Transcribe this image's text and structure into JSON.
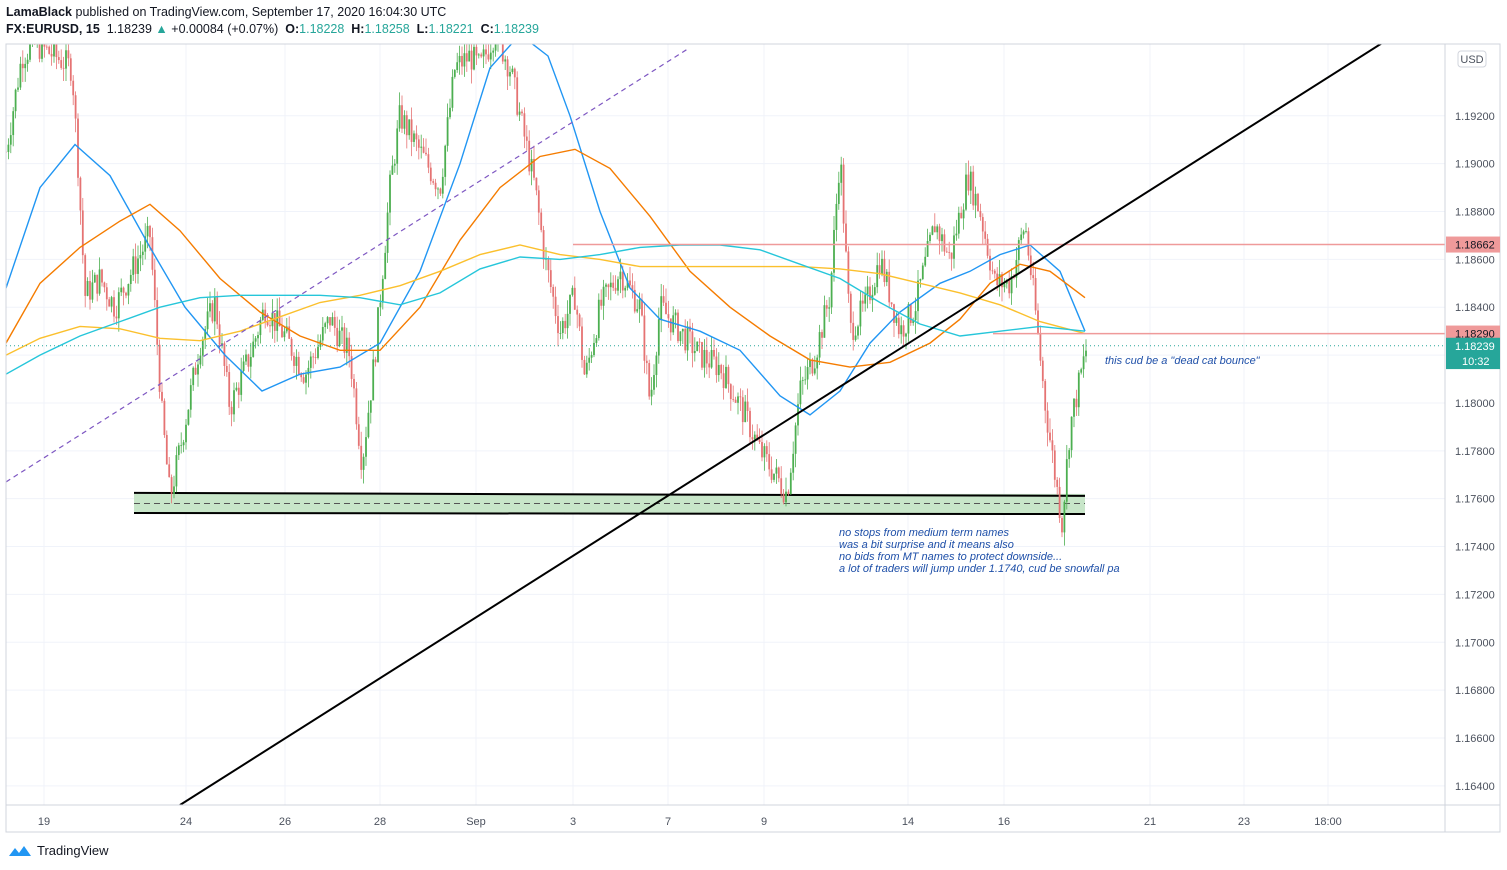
{
  "header": {
    "author": "LamaBlack",
    "published": "published on TradingView.com, September 17, 2020 16:04:30 UTC",
    "symbol": "FX:EURUSD, 15",
    "last": "1.18239",
    "change_arrow": "▲",
    "change": "+0.00084 (+0.07%)",
    "o_label": "O:",
    "o": "1.18228",
    "h_label": "H:",
    "h": "1.18258",
    "l_label": "L:",
    "l": "1.18221",
    "c_label": "C:",
    "c": "1.18239"
  },
  "currency_label": "USD",
  "footer": {
    "brand": "TradingView"
  },
  "colors": {
    "up": "#26a69a",
    "down": "#ef5350",
    "candle_up": "#4caf50",
    "candle_down": "#e57373",
    "ma_blue": "#2196f3",
    "ma_orange": "#f57c00",
    "ma_yellow": "#fbc02d",
    "ma_cyan": "#26c6da",
    "hline": "#ef9a9a",
    "zone": "#c8e6c9",
    "annotation": "#1e4fa8"
  },
  "chart_data": {
    "type": "candlestick",
    "y_axis": {
      "range": [
        1.1632,
        1.195
      ],
      "ticks": [
        "1.19200",
        "1.19000",
        "1.18800",
        "1.18600",
        "1.18400",
        "1.18200",
        "1.18000",
        "1.17800",
        "1.17600",
        "1.17400",
        "1.17200",
        "1.17000",
        "1.16800",
        "1.16600",
        "1.16400"
      ]
    },
    "x_axis": {
      "ticks": [
        "19",
        "24",
        "26",
        "28",
        "Sep",
        "3",
        "7",
        "9",
        "14",
        "16",
        "21",
        "23",
        "18:00"
      ]
    },
    "price_badges": [
      {
        "label": "1.18662",
        "value": 1.18662,
        "kind": "hline"
      },
      {
        "label": "1.18290",
        "value": 1.1829,
        "kind": "hline"
      },
      {
        "label": "1.18239",
        "value": 1.18239,
        "kind": "last"
      },
      {
        "label": "10:32",
        "value": 1.18175,
        "kind": "countdown"
      }
    ],
    "horizontal_lines": [
      {
        "value": 1.18662,
        "from": "Sep 3",
        "to": "axis"
      },
      {
        "value": 1.1829,
        "from": "Sep 15",
        "to": "axis"
      }
    ],
    "support_zone": {
      "top": 1.1762,
      "bottom": 1.1754,
      "mid": 1.1758
    },
    "annotations": [
      {
        "text": "this cud be a \"dead cat bounce\"",
        "value": 1.1818
      },
      {
        "text": "no stops from medium term names",
        "value": 1.1746
      },
      {
        "text": "was a bit surprise and it means also",
        "value": 1.1741
      },
      {
        "text": "no bids from MT names to protect downside...",
        "value": 1.1736
      },
      {
        "text": "a lot of traders will jump under 1.1740, cud be snowfall pa",
        "value": 1.1731
      }
    ],
    "price_path": [
      [
        0,
        1.189
      ],
      [
        10,
        1.1915
      ],
      [
        22,
        1.1945
      ],
      [
        35,
        1.195
      ],
      [
        55,
        1.1945
      ],
      [
        72,
        1.194
      ],
      [
        78,
        1.19
      ],
      [
        85,
        1.1845
      ],
      [
        100,
        1.1852
      ],
      [
        115,
        1.184
      ],
      [
        135,
        1.1858
      ],
      [
        150,
        1.187
      ],
      [
        162,
        1.1795
      ],
      [
        170,
        1.176
      ],
      [
        182,
        1.1785
      ],
      [
        200,
        1.1825
      ],
      [
        215,
        1.1842
      ],
      [
        230,
        1.1798
      ],
      [
        250,
        1.182
      ],
      [
        265,
        1.184
      ],
      [
        285,
        1.1828
      ],
      [
        305,
        1.1812
      ],
      [
        330,
        1.1835
      ],
      [
        350,
        1.182
      ],
      [
        362,
        1.1775
      ],
      [
        375,
        1.182
      ],
      [
        390,
        1.189
      ],
      [
        400,
        1.192
      ],
      [
        420,
        1.1905
      ],
      [
        440,
        1.189
      ],
      [
        455,
        1.194
      ],
      [
        470,
        1.1945
      ],
      [
        480,
        1.194
      ],
      [
        495,
        1.1955
      ],
      [
        510,
        1.194
      ],
      [
        520,
        1.192
      ],
      [
        535,
        1.189
      ],
      [
        545,
        1.186
      ],
      [
        560,
        1.183
      ],
      [
        575,
        1.1845
      ],
      [
        585,
        1.181
      ],
      [
        600,
        1.184
      ],
      [
        620,
        1.1855
      ],
      [
        640,
        1.184
      ],
      [
        650,
        1.18
      ],
      [
        660,
        1.184
      ],
      [
        680,
        1.183
      ],
      [
        700,
        1.182
      ],
      [
        720,
        1.1815
      ],
      [
        745,
        1.1795
      ],
      [
        760,
        1.178
      ],
      [
        775,
        1.177
      ],
      [
        787,
        1.1762
      ],
      [
        800,
        1.1805
      ],
      [
        815,
        1.182
      ],
      [
        830,
        1.1845
      ],
      [
        840,
        1.1905
      ],
      [
        850,
        1.183
      ],
      [
        865,
        1.184
      ],
      [
        880,
        1.186
      ],
      [
        900,
        1.183
      ],
      [
        915,
        1.184
      ],
      [
        935,
        1.1875
      ],
      [
        950,
        1.186
      ],
      [
        968,
        1.1895
      ],
      [
        980,
        1.188
      ],
      [
        995,
        1.185
      ],
      [
        1010,
        1.185
      ],
      [
        1025,
        1.1875
      ],
      [
        1035,
        1.184
      ],
      [
        1045,
        1.18
      ],
      [
        1055,
        1.177
      ],
      [
        1062,
        1.175
      ],
      [
        1070,
        1.179
      ],
      [
        1080,
        1.181
      ],
      [
        1087,
        1.1824
      ]
    ],
    "moving_averages": [
      {
        "color": "#2196f3",
        "points": [
          [
            6,
            1.1848
          ],
          [
            40,
            1.189
          ],
          [
            75,
            1.1908
          ],
          [
            110,
            1.1895
          ],
          [
            150,
            1.1865
          ],
          [
            185,
            1.184
          ],
          [
            225,
            1.182
          ],
          [
            262,
            1.1805
          ],
          [
            300,
            1.1812
          ],
          [
            340,
            1.1815
          ],
          [
            380,
            1.1825
          ],
          [
            420,
            1.1855
          ],
          [
            460,
            1.19
          ],
          [
            490,
            1.194
          ],
          [
            520,
            1.1954
          ],
          [
            548,
            1.1945
          ],
          [
            570,
            1.192
          ],
          [
            600,
            1.188
          ],
          [
            630,
            1.1848
          ],
          [
            660,
            1.1835
          ],
          [
            700,
            1.183
          ],
          [
            740,
            1.1822
          ],
          [
            780,
            1.1803
          ],
          [
            810,
            1.1795
          ],
          [
            840,
            1.1805
          ],
          [
            870,
            1.1825
          ],
          [
            900,
            1.1838
          ],
          [
            940,
            1.185
          ],
          [
            970,
            1.1855
          ],
          [
            1000,
            1.1862
          ],
          [
            1030,
            1.1866
          ],
          [
            1060,
            1.1855
          ],
          [
            1085,
            1.183
          ]
        ]
      },
      {
        "color": "#f57c00",
        "points": [
          [
            6,
            1.1825
          ],
          [
            40,
            1.185
          ],
          [
            80,
            1.1865
          ],
          [
            120,
            1.1876
          ],
          [
            150,
            1.1883
          ],
          [
            180,
            1.1872
          ],
          [
            220,
            1.1852
          ],
          [
            260,
            1.1838
          ],
          [
            300,
            1.1828
          ],
          [
            340,
            1.1822
          ],
          [
            380,
            1.1822
          ],
          [
            420,
            1.184
          ],
          [
            460,
            1.1868
          ],
          [
            500,
            1.189
          ],
          [
            540,
            1.1903
          ],
          [
            575,
            1.1906
          ],
          [
            610,
            1.1898
          ],
          [
            650,
            1.1878
          ],
          [
            690,
            1.1855
          ],
          [
            730,
            1.184
          ],
          [
            770,
            1.1828
          ],
          [
            810,
            1.1818
          ],
          [
            850,
            1.1815
          ],
          [
            890,
            1.1817
          ],
          [
            930,
            1.1825
          ],
          [
            960,
            1.1835
          ],
          [
            990,
            1.185
          ],
          [
            1020,
            1.1858
          ],
          [
            1050,
            1.1855
          ],
          [
            1085,
            1.1844
          ]
        ]
      },
      {
        "color": "#fbc02d",
        "points": [
          [
            6,
            1.182
          ],
          [
            40,
            1.1827
          ],
          [
            80,
            1.1832
          ],
          [
            120,
            1.1831
          ],
          [
            160,
            1.1827
          ],
          [
            200,
            1.1826
          ],
          [
            240,
            1.183
          ],
          [
            280,
            1.1836
          ],
          [
            320,
            1.1842
          ],
          [
            360,
            1.1845
          ],
          [
            400,
            1.1849
          ],
          [
            440,
            1.1855
          ],
          [
            480,
            1.1862
          ],
          [
            520,
            1.1866
          ],
          [
            560,
            1.1862
          ],
          [
            600,
            1.186
          ],
          [
            640,
            1.1857
          ],
          [
            680,
            1.1857
          ],
          [
            720,
            1.1857
          ],
          [
            760,
            1.1857
          ],
          [
            800,
            1.1857
          ],
          [
            840,
            1.1856
          ],
          [
            880,
            1.1854
          ],
          [
            920,
            1.185
          ],
          [
            960,
            1.1846
          ],
          [
            1000,
            1.1841
          ],
          [
            1040,
            1.1834
          ],
          [
            1085,
            1.1829
          ]
        ]
      },
      {
        "color": "#26c6da",
        "points": [
          [
            6,
            1.1812
          ],
          [
            40,
            1.182
          ],
          [
            80,
            1.1828
          ],
          [
            120,
            1.1834
          ],
          [
            160,
            1.184
          ],
          [
            200,
            1.1844
          ],
          [
            240,
            1.1845
          ],
          [
            280,
            1.1845
          ],
          [
            320,
            1.1845
          ],
          [
            360,
            1.1844
          ],
          [
            400,
            1.1841
          ],
          [
            440,
            1.1846
          ],
          [
            480,
            1.1856
          ],
          [
            520,
            1.1861
          ],
          [
            560,
            1.186
          ],
          [
            600,
            1.1862
          ],
          [
            640,
            1.1865
          ],
          [
            680,
            1.1866
          ],
          [
            720,
            1.1866
          ],
          [
            760,
            1.1864
          ],
          [
            800,
            1.1858
          ],
          [
            840,
            1.1852
          ],
          [
            880,
            1.1842
          ],
          [
            920,
            1.1833
          ],
          [
            960,
            1.1828
          ],
          [
            1000,
            1.183
          ],
          [
            1040,
            1.1832
          ],
          [
            1085,
            1.183
          ]
        ]
      }
    ],
    "trendlines": [
      {
        "style": "solid",
        "color": "#000000",
        "from": [
          180,
          1.1632
        ],
        "to": [
          1392,
          1.1953
        ]
      },
      {
        "style": "dashed",
        "color": "#7e57c2",
        "from": [
          6,
          1.1767
        ],
        "to": [
          688,
          1.1948
        ]
      }
    ]
  }
}
